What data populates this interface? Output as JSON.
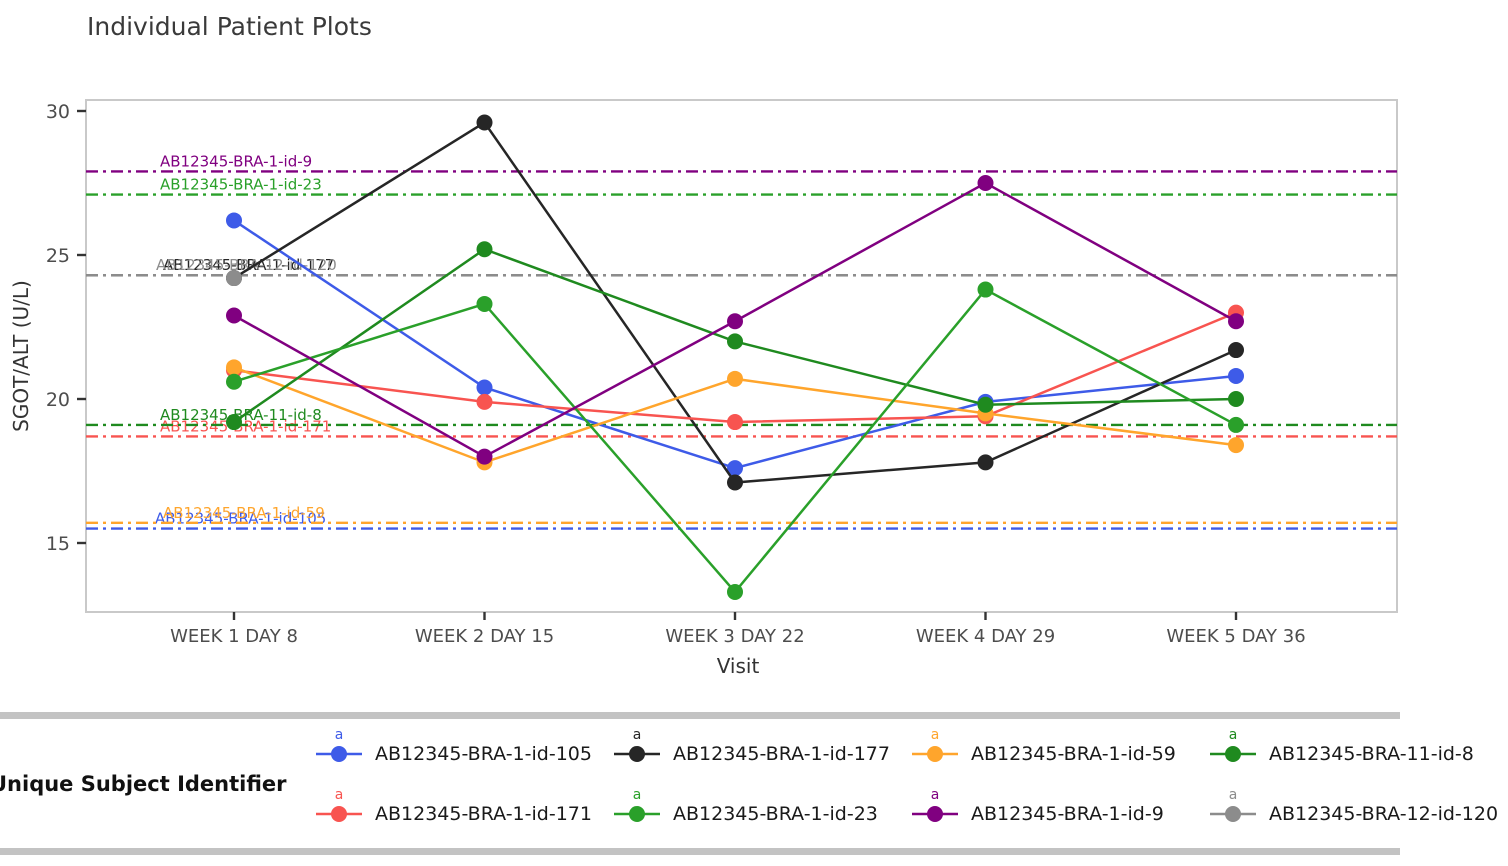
{
  "page": {
    "title": "Individual Patient Plots"
  },
  "legend": {
    "title": "Unique Subject Identifier",
    "key_glyph": "a"
  },
  "chart_data": {
    "type": "line",
    "title": "Individual Patient Plots",
    "xlabel": "Visit",
    "ylabel": "SGOT/ALT (U/L)",
    "categories": [
      "WEEK 1 DAY 8",
      "WEEK 2 DAY 15",
      "WEEK 3 DAY 22",
      "WEEK 4 DAY 29",
      "WEEK 5 DAY 36"
    ],
    "yticks": [
      30,
      25,
      20,
      15
    ],
    "ylim": [
      12.6,
      30.4
    ],
    "grid": false,
    "legend_position": "bottom",
    "ref_line_style": "dash-dot",
    "series": [
      {
        "name": "AB12345-BRA-1-id-105",
        "color": "#3E5BE8",
        "values": [
          26.2,
          20.4,
          17.6,
          19.9,
          20.8
        ],
        "ref_line": 15.5
      },
      {
        "name": "AB12345-BRA-1-id-177",
        "color": "#262626",
        "values": [
          24.2,
          29.6,
          17.1,
          17.8,
          21.7
        ],
        "ref_line": 24.3
      },
      {
        "name": "AB12345-BRA-1-id-59",
        "color": "#FFA52C",
        "values": [
          21.1,
          17.8,
          20.7,
          19.5,
          18.4
        ],
        "ref_line": 15.7
      },
      {
        "name": "AB12345-BRA-11-id-8",
        "color": "#1F8A1F",
        "values": [
          19.2,
          25.2,
          22.0,
          19.8,
          20.0
        ],
        "ref_line": 19.1
      },
      {
        "name": "AB12345-BRA-1-id-171",
        "color": "#F85450",
        "values": [
          21.0,
          19.9,
          19.2,
          19.4,
          23.0
        ],
        "ref_line": 18.7
      },
      {
        "name": "AB12345-BRA-1-id-23",
        "color": "#2AA02A",
        "values": [
          20.6,
          23.3,
          13.3,
          23.8,
          19.1
        ],
        "ref_line": 27.1
      },
      {
        "name": "AB12345-BRA-1-id-9",
        "color": "#800080",
        "values": [
          22.9,
          18.0,
          22.7,
          27.5,
          22.7
        ],
        "ref_line": 27.9
      },
      {
        "name": "AB12345-BRA-12-id-120",
        "color": "#8C8C8C",
        "values": [
          24.2,
          null,
          null,
          null,
          null
        ],
        "ref_line": 24.3
      }
    ]
  }
}
